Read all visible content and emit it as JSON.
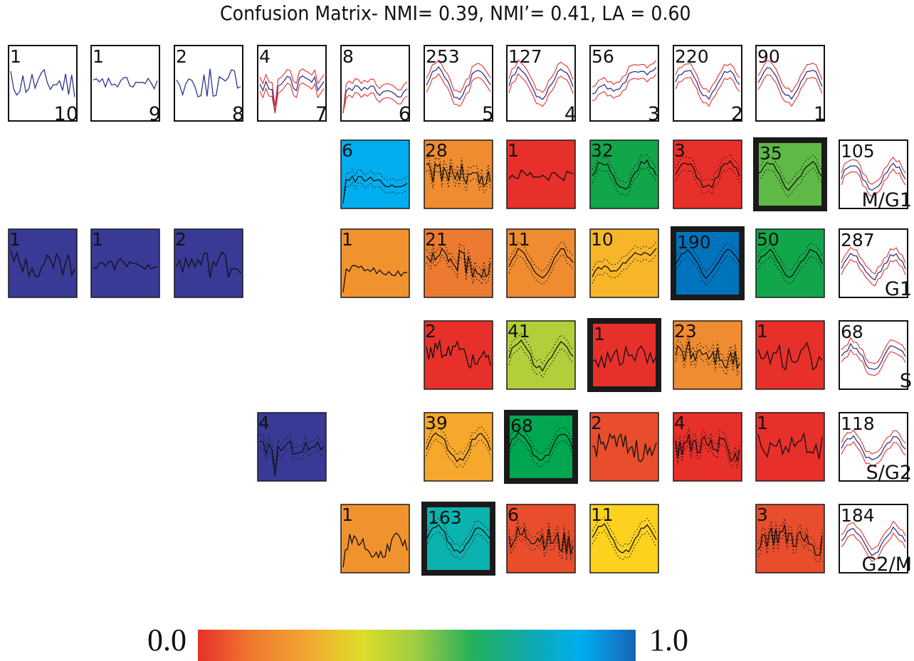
{
  "title": "Confusion Matrix- NMI= 0.39, NMI’= 0.41, LA = 0.60",
  "colorbar": {
    "min_label": "0.0",
    "max_label": "1.0",
    "stops": [
      "#e8302a",
      "#ef7a2f",
      "#f3a631",
      "#dede2a",
      "#9dcc45",
      "#26b15a",
      "#10aaa7",
      "#00aeef",
      "#1565b8"
    ]
  },
  "chart_data": {
    "type": "heatmap",
    "title": "Confusion Matrix- NMI= 0.39, NMI’= 0.41, LA = 0.60",
    "columns": [
      {
        "label": "10",
        "count": 1,
        "profile": "jagged"
      },
      {
        "label": "9",
        "count": 1,
        "profile": "flat"
      },
      {
        "label": "8",
        "count": 2,
        "profile": "jagged"
      },
      {
        "label": "7",
        "count": 4,
        "profile": "spike"
      },
      {
        "label": "6",
        "count": 8,
        "profile": "drop"
      },
      {
        "label": "5",
        "count": 253,
        "profile": "wave"
      },
      {
        "label": "4",
        "count": 127,
        "profile": "wave"
      },
      {
        "label": "3",
        "count": 56,
        "profile": "rise"
      },
      {
        "label": "2",
        "count": 220,
        "profile": "wave"
      },
      {
        "label": "1",
        "count": 90,
        "profile": "wave"
      }
    ],
    "rows": [
      {
        "label": "M/G1",
        "count": 105
      },
      {
        "label": "G1",
        "count": 287
      },
      {
        "label": "S",
        "count": 68
      },
      {
        "label": "S/G2",
        "count": 118
      },
      {
        "label": "G2/M",
        "count": 184
      }
    ],
    "cells": [
      {
        "row": 0,
        "col": 4,
        "count": 6,
        "value": 0.85,
        "color": "#00aeef",
        "best": false,
        "profile": "drop"
      },
      {
        "row": 0,
        "col": 5,
        "count": 28,
        "value": 0.2,
        "color": "#ef8c30",
        "best": false,
        "profile": "noisy"
      },
      {
        "row": 0,
        "col": 6,
        "count": 1,
        "value": 0.0,
        "color": "#e8302a",
        "best": false,
        "profile": "flat"
      },
      {
        "row": 0,
        "col": 7,
        "count": 32,
        "value": 0.62,
        "color": "#12a64b",
        "best": false,
        "profile": "wave"
      },
      {
        "row": 0,
        "col": 8,
        "count": 3,
        "value": 0.0,
        "color": "#e8302a",
        "best": false,
        "profile": "wave"
      },
      {
        "row": 0,
        "col": 9,
        "count": 35,
        "value": 0.58,
        "color": "#5fb946",
        "best": true,
        "profile": "wave"
      },
      {
        "row": 1,
        "col": 0,
        "count": 1,
        "value": 1.0,
        "color": "#383a96",
        "best": false,
        "profile": "jagged"
      },
      {
        "row": 1,
        "col": 1,
        "count": 1,
        "value": 1.0,
        "color": "#383a96",
        "best": false,
        "profile": "flat"
      },
      {
        "row": 1,
        "col": 2,
        "count": 2,
        "value": 1.0,
        "color": "#383a96",
        "best": false,
        "profile": "jagged"
      },
      {
        "row": 1,
        "col": 4,
        "count": 1,
        "value": 0.22,
        "color": "#f0932f",
        "best": false,
        "profile": "drop"
      },
      {
        "row": 1,
        "col": 5,
        "count": 21,
        "value": 0.15,
        "color": "#ec7b31",
        "best": false,
        "profile": "noisy"
      },
      {
        "row": 1,
        "col": 6,
        "count": 11,
        "value": 0.17,
        "color": "#ef8c30",
        "best": false,
        "profile": "wave"
      },
      {
        "row": 1,
        "col": 7,
        "count": 10,
        "value": 0.3,
        "color": "#f7b629",
        "best": false,
        "profile": "rise"
      },
      {
        "row": 1,
        "col": 8,
        "count": 190,
        "value": 0.95,
        "color": "#0073bd",
        "best": true,
        "profile": "wave"
      },
      {
        "row": 1,
        "col": 9,
        "count": 50,
        "value": 0.62,
        "color": "#12a64b",
        "best": false,
        "profile": "wave"
      },
      {
        "row": 2,
        "col": 5,
        "count": 2,
        "value": 0.0,
        "color": "#e8302a",
        "best": false,
        "profile": "noisy"
      },
      {
        "row": 2,
        "col": 6,
        "count": 41,
        "value": 0.48,
        "color": "#b0cf3a",
        "best": false,
        "profile": "wave"
      },
      {
        "row": 2,
        "col": 7,
        "count": 1,
        "value": 0.0,
        "color": "#e8302a",
        "best": true,
        "profile": "jagged"
      },
      {
        "row": 2,
        "col": 8,
        "count": 23,
        "value": 0.18,
        "color": "#ef8b30",
        "best": false,
        "profile": "noisy"
      },
      {
        "row": 2,
        "col": 9,
        "count": 1,
        "value": 0.0,
        "color": "#e8302a",
        "best": false,
        "profile": "jagged"
      },
      {
        "row": 3,
        "col": 3,
        "count": 4,
        "value": 1.0,
        "color": "#383a96",
        "best": false,
        "profile": "spike"
      },
      {
        "row": 3,
        "col": 5,
        "count": 39,
        "value": 0.28,
        "color": "#f5a82b",
        "best": false,
        "profile": "wave"
      },
      {
        "row": 3,
        "col": 6,
        "count": 68,
        "value": 0.65,
        "color": "#00a650",
        "best": true,
        "profile": "wave"
      },
      {
        "row": 3,
        "col": 7,
        "count": 2,
        "value": 0.05,
        "color": "#e84e2c",
        "best": false,
        "profile": "noisy"
      },
      {
        "row": 3,
        "col": 8,
        "count": 4,
        "value": 0.0,
        "color": "#e8302a",
        "best": false,
        "profile": "noisy"
      },
      {
        "row": 3,
        "col": 9,
        "count": 1,
        "value": 0.0,
        "color": "#e8302a",
        "best": false,
        "profile": "jagged"
      },
      {
        "row": 4,
        "col": 4,
        "count": 1,
        "value": 0.22,
        "color": "#f0932f",
        "best": false,
        "profile": "spiky"
      },
      {
        "row": 4,
        "col": 5,
        "count": 163,
        "value": 0.75,
        "color": "#0cb2ae",
        "best": true,
        "profile": "wave"
      },
      {
        "row": 4,
        "col": 6,
        "count": 6,
        "value": 0.05,
        "color": "#e84e2c",
        "best": false,
        "profile": "noisy"
      },
      {
        "row": 4,
        "col": 7,
        "count": 11,
        "value": 0.35,
        "color": "#fcd21f",
        "best": false,
        "profile": "wave"
      },
      {
        "row": 4,
        "col": 9,
        "count": 3,
        "value": 0.05,
        "color": "#e84e2c",
        "best": false,
        "profile": "noisy"
      }
    ]
  }
}
